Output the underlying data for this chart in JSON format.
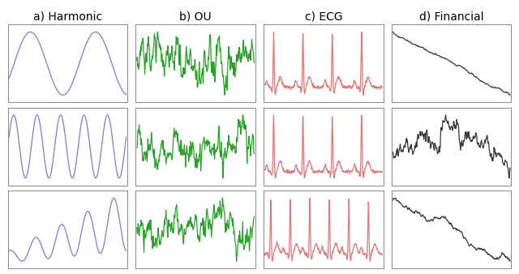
{
  "titles": [
    "a) Harmonic",
    "b) OU",
    "c) ECG",
    "d) Financial"
  ],
  "colors": [
    "#7B7BD4",
    "#2ca02c",
    "#E07878",
    "#3a3a3a"
  ],
  "title_fontsize": 10,
  "figsize": [
    6.4,
    3.38
  ],
  "dpi": 100,
  "n_rows": 3,
  "n_cols": 4
}
